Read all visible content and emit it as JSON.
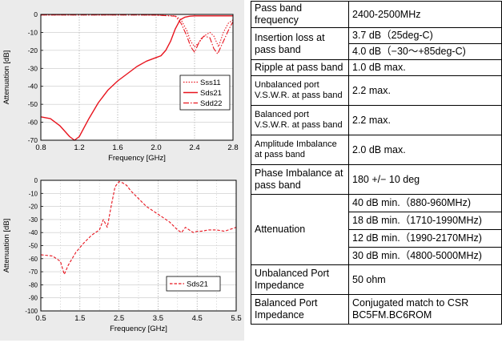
{
  "chart_data": [
    {
      "type": "line",
      "title": "",
      "xlabel": "Frequency [GHz]",
      "ylabel": "Attenuation [dB]",
      "xlim": [
        0.8,
        2.8
      ],
      "ylim": [
        -70,
        0
      ],
      "xticks": [
        "0.8",
        "1.2",
        "1.6",
        "2.0",
        "2.4",
        "2.8"
      ],
      "yticks": [
        "0",
        "-10",
        "-20",
        "-30",
        "-40",
        "-50",
        "-60",
        "-70"
      ],
      "grid": true,
      "legend_position": "center-right",
      "series": [
        {
          "name": "Sss11",
          "style": "dotted",
          "color": "#e8141e",
          "x": [
            0.8,
            1.0,
            1.2,
            1.4,
            1.6,
            1.8,
            2.0,
            2.2,
            2.26,
            2.32,
            2.36,
            2.4,
            2.44,
            2.5,
            2.56,
            2.6,
            2.65,
            2.7,
            2.75,
            2.8
          ],
          "y": [
            -0.3,
            -0.3,
            -0.3,
            -0.3,
            -0.3,
            -0.3,
            -0.4,
            -0.8,
            -3,
            -9,
            -15,
            -18,
            -16,
            -12,
            -10,
            -12,
            -18,
            -10,
            -5,
            -3
          ]
        },
        {
          "name": "Sds21",
          "style": "solid",
          "color": "#e8141e",
          "x": [
            0.8,
            0.9,
            1.0,
            1.1,
            1.15,
            1.2,
            1.3,
            1.4,
            1.5,
            1.6,
            1.7,
            1.8,
            1.9,
            2.0,
            2.05,
            2.1,
            2.15,
            2.2,
            2.25,
            2.3,
            2.35,
            2.4,
            2.45,
            2.5,
            2.55,
            2.6,
            2.65,
            2.7,
            2.75,
            2.8
          ],
          "y": [
            -57,
            -58,
            -62,
            -68,
            -72,
            -68,
            -58,
            -49,
            -42,
            -37,
            -33,
            -29,
            -26,
            -24,
            -23,
            -20,
            -15,
            -8,
            -3,
            -1.5,
            -1.0,
            -0.8,
            -0.8,
            -0.8,
            -0.8,
            -0.8,
            -0.8,
            -0.8,
            -0.8,
            -0.8
          ]
        },
        {
          "name": "Sdd22",
          "style": "dashdot",
          "color": "#e8141e",
          "x": [
            0.8,
            1.0,
            1.2,
            1.4,
            1.6,
            1.8,
            2.0,
            2.2,
            2.26,
            2.32,
            2.36,
            2.4,
            2.46,
            2.5,
            2.56,
            2.6,
            2.64,
            2.7,
            2.76,
            2.8
          ],
          "y": [
            -0.3,
            -0.3,
            -0.3,
            -0.3,
            -0.3,
            -0.3,
            -0.4,
            -1,
            -5,
            -12,
            -18,
            -21,
            -14,
            -12,
            -13,
            -19,
            -22,
            -15,
            -8,
            -4
          ]
        }
      ]
    },
    {
      "type": "line",
      "title": "",
      "xlabel": "Frequency [GHz]",
      "ylabel": "Attenuation [dB]",
      "xlim": [
        0.5,
        5.5
      ],
      "ylim": [
        -100,
        0
      ],
      "xticks": [
        "0.5",
        "1.5",
        "2.5",
        "3.5",
        "4.5",
        "5.5"
      ],
      "yticks": [
        "0",
        "-10",
        "-20",
        "-30",
        "-40",
        "-50",
        "-60",
        "-70",
        "-80",
        "-90",
        "-100"
      ],
      "grid": true,
      "legend_position": "bottom-right",
      "series": [
        {
          "name": "Sds21",
          "style": "dashed",
          "color": "#e8141e",
          "x": [
            0.5,
            0.8,
            1.0,
            1.1,
            1.2,
            1.4,
            1.6,
            1.8,
            1.9,
            2.0,
            2.1,
            2.2,
            2.3,
            2.4,
            2.5,
            2.6,
            2.7,
            2.8,
            3.0,
            3.2,
            3.4,
            3.6,
            3.8,
            4.0,
            4.1,
            4.2,
            4.3,
            4.4,
            4.5,
            4.6,
            4.8,
            5.0,
            5.2,
            5.4,
            5.5
          ],
          "y": [
            -57,
            -58,
            -62,
            -72,
            -65,
            -55,
            -48,
            -42,
            -40,
            -38,
            -30,
            -36,
            -20,
            -5,
            -1,
            -2,
            -4,
            -8,
            -14,
            -20,
            -24,
            -28,
            -32,
            -38,
            -40,
            -36,
            -38,
            -40,
            -39,
            -39,
            -38,
            -38,
            -39,
            -37,
            -36
          ]
        }
      ]
    }
  ],
  "spec_table": {
    "rows": [
      {
        "param": "Pass band frequency",
        "values": [
          "2400-2500MHz"
        ]
      },
      {
        "param": "Insertion loss at pass band",
        "values": [
          "3.7 dB（25deg-C)",
          "4.0 dB（−30～+85deg-C)"
        ]
      },
      {
        "param": "Ripple at pass band",
        "values": [
          "1.0 dB max."
        ]
      },
      {
        "param": "Unbalanced port V.S.W.R. at pass band",
        "values": [
          "2.2 max."
        ]
      },
      {
        "param": "Balanced port V.S.W.R. at pass band",
        "values": [
          "2.2 max."
        ]
      },
      {
        "param": "Amplitude Imbalance at pass band",
        "values": [
          "2.0 dB max."
        ]
      },
      {
        "param": "Phase Imbalance at pass band",
        "values": [
          "180 +/− 10 deg"
        ]
      },
      {
        "param": "Attenuation",
        "values": [
          "40 dB min.（880-960MHz)",
          "18 dB min.（1710-1990MHz)",
          "12 dB min.（1990-2170MHz)",
          "30 dB min.（4800-5000MHz)"
        ]
      },
      {
        "param": "Unbalanced Port Impedance",
        "values": [
          "50 ohm"
        ]
      },
      {
        "param": "Balanced Port Impedance",
        "values": [
          "Conjugated match to CSR BC5FM.BC6ROM"
        ]
      }
    ]
  }
}
